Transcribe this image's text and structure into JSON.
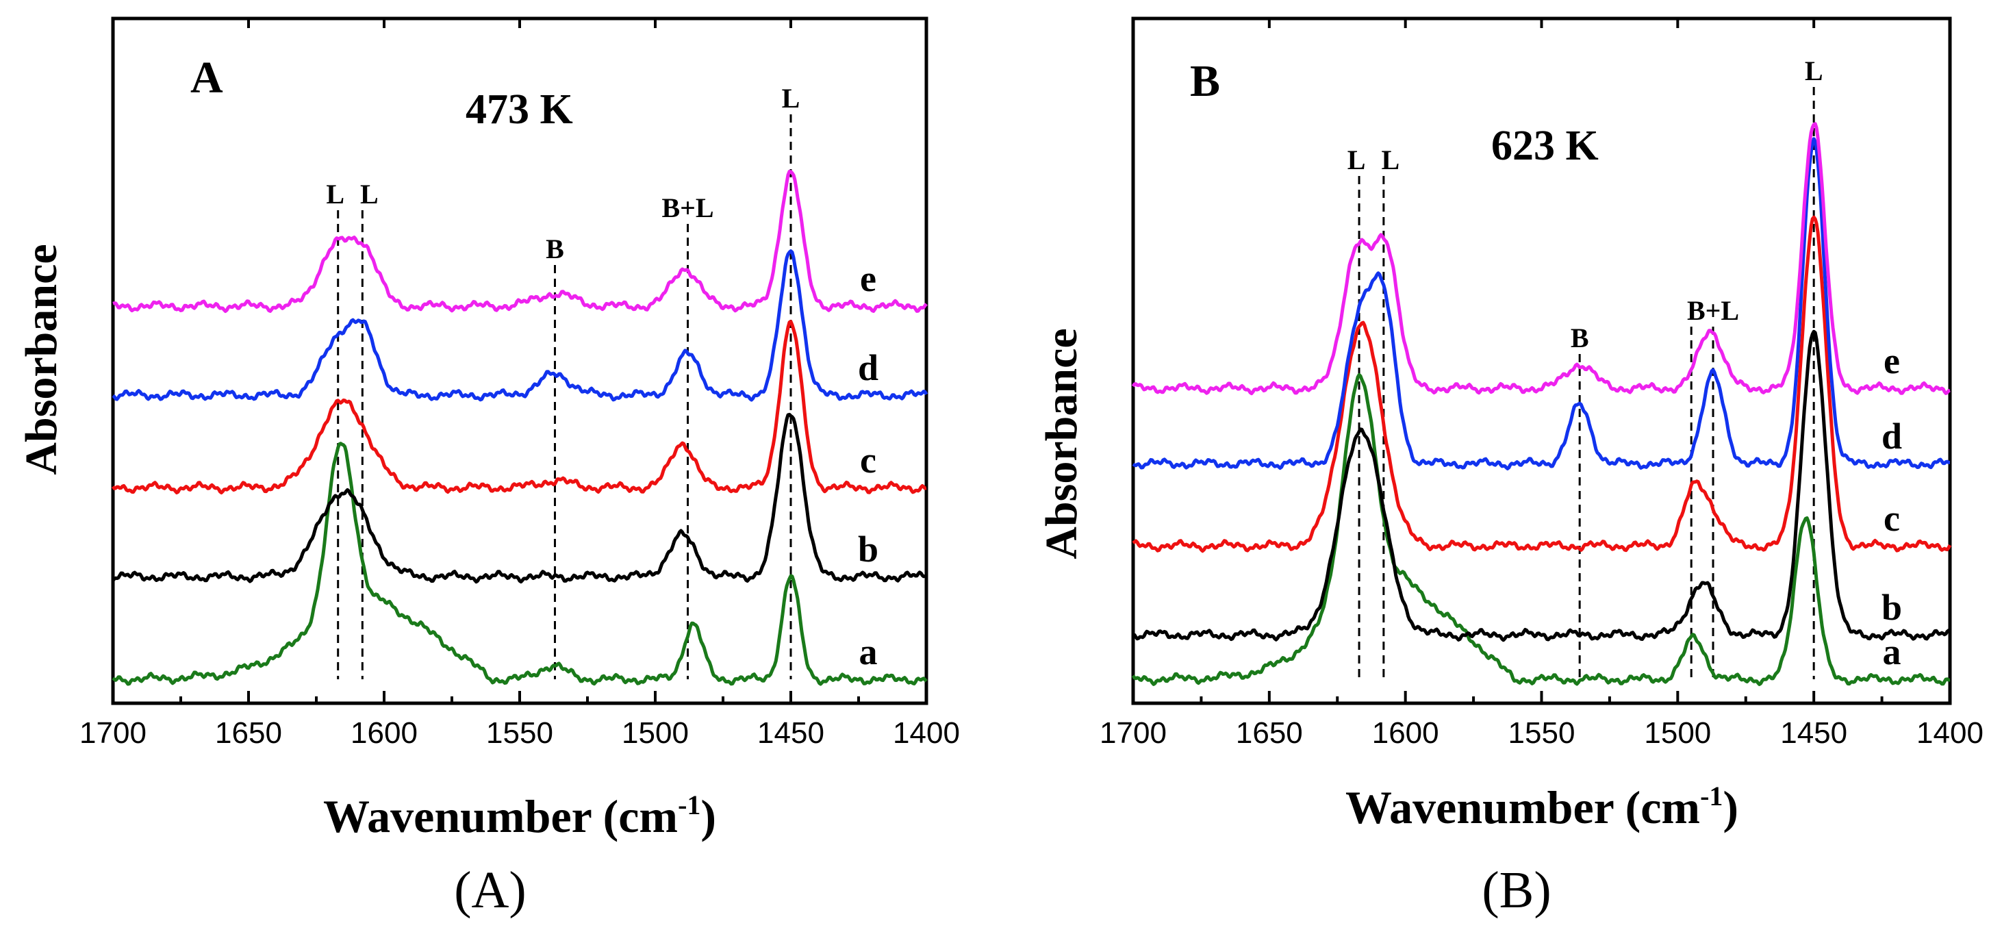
{
  "chart_data": [
    {
      "type": "line",
      "panel": "A",
      "temperature": "473 K",
      "xlabel": "Wavenumber (cm",
      "xlabel_sup": "-1",
      "xlabel_close": ")",
      "ylabel": "Absorbance",
      "caption": "(A)",
      "xlim": [
        1700,
        1400
      ],
      "ylim": [
        0,
        10
      ],
      "xticks": [
        1700,
        1650,
        1600,
        1550,
        1500,
        1450,
        1400
      ],
      "band_markers": [
        {
          "x": 1617,
          "label": "L",
          "top": 7.2
        },
        {
          "x": 1608,
          "label": "L",
          "top": 7.2
        },
        {
          "x": 1537,
          "label": "B",
          "top": 6.4
        },
        {
          "x": 1488,
          "label": "B+L",
          "top": 7.0
        },
        {
          "x": 1450,
          "label": "L",
          "top": 8.6
        }
      ],
      "band_label_order": [
        "L",
        "L",
        "B",
        "B+L",
        "L"
      ],
      "series": [
        {
          "name": "a",
          "color": "#1a7a1a",
          "baseline": 0.35,
          "ramp": {
            "center": 1630,
            "width": 45,
            "height": 1.2
          },
          "peaks": [
            {
              "x": 1616,
              "h": 2.5,
              "w": 5
            },
            {
              "x": 1538,
              "h": 0.2,
              "w": 5
            },
            {
              "x": 1486,
              "h": 0.8,
              "w": 3.5
            },
            {
              "x": 1450,
              "h": 1.5,
              "w": 3.2
            }
          ]
        },
        {
          "name": "b",
          "color": "#000000",
          "baseline": 1.85,
          "peaks": [
            {
              "x": 1615,
              "h": 1.25,
              "w": 9
            },
            {
              "x": 1490,
              "h": 0.6,
              "w": 5
            },
            {
              "x": 1450,
              "h": 2.4,
              "w": 4.5
            }
          ]
        },
        {
          "name": "c",
          "color": "#ee1111",
          "baseline": 3.15,
          "peaks": [
            {
              "x": 1615,
              "h": 1.25,
              "w": 9
            },
            {
              "x": 1537,
              "h": 0.1,
              "w": 6
            },
            {
              "x": 1490,
              "h": 0.65,
              "w": 4.5
            },
            {
              "x": 1450,
              "h": 2.4,
              "w": 4
            }
          ]
        },
        {
          "name": "d",
          "color": "#1133ee",
          "baseline": 4.5,
          "peaks": [
            {
              "x": 1617,
              "h": 0.8,
              "w": 6
            },
            {
              "x": 1607,
              "h": 0.8,
              "w": 5
            },
            {
              "x": 1537,
              "h": 0.3,
              "w": 6
            },
            {
              "x": 1488,
              "h": 0.6,
              "w": 4.5
            },
            {
              "x": 1450,
              "h": 2.1,
              "w": 4
            }
          ]
        },
        {
          "name": "e",
          "color": "#ee22ee",
          "baseline": 5.8,
          "peaks": [
            {
              "x": 1618,
              "h": 0.85,
              "w": 6
            },
            {
              "x": 1607,
              "h": 0.75,
              "w": 5
            },
            {
              "x": 1537,
              "h": 0.18,
              "w": 7
            },
            {
              "x": 1489,
              "h": 0.55,
              "w": 5
            },
            {
              "x": 1450,
              "h": 1.95,
              "w": 4
            }
          ]
        }
      ]
    },
    {
      "type": "line",
      "panel": "B",
      "temperature": "623 K",
      "xlabel": "Wavenumber (cm",
      "xlabel_sup": "-1",
      "xlabel_close": ")",
      "ylabel": "Absorbance",
      "caption": "(B)",
      "xlim": [
        1700,
        1400
      ],
      "ylim": [
        0,
        10
      ],
      "xticks": [
        1700,
        1650,
        1600,
        1550,
        1500,
        1450,
        1400
      ],
      "band_markers": [
        {
          "x": 1617,
          "label": "L",
          "top": 7.7
        },
        {
          "x": 1608,
          "label": "L",
          "top": 7.7
        },
        {
          "x": 1536,
          "label": "B",
          "top": 5.1
        },
        {
          "x": 1495,
          "label": "",
          "top": 5.5
        },
        {
          "x": 1487,
          "label": "B+L",
          "top": 5.5
        },
        {
          "x": 1450,
          "label": "L",
          "top": 9.0
        }
      ],
      "band_label_order": [
        "L",
        "L",
        "B",
        "B+L",
        "L"
      ],
      "series": [
        {
          "name": "a",
          "color": "#1a7a1a",
          "baseline": 0.35,
          "ramp": {
            "center": 1630,
            "width": 40,
            "height": 1.5
          },
          "peaks": [
            {
              "x": 1617,
              "h": 3.2,
              "w": 6
            },
            {
              "x": 1494,
              "h": 0.6,
              "w": 4
            },
            {
              "x": 1453,
              "h": 2.4,
              "w": 4
            }
          ]
        },
        {
          "name": "b",
          "color": "#000000",
          "baseline": 1.0,
          "peaks": [
            {
              "x": 1616,
              "h": 3.0,
              "w": 8
            },
            {
              "x": 1491,
              "h": 0.75,
              "w": 5
            },
            {
              "x": 1450,
              "h": 4.4,
              "w": 4.5
            }
          ]
        },
        {
          "name": "c",
          "color": "#ee1111",
          "baseline": 2.3,
          "peaks": [
            {
              "x": 1616,
              "h": 3.2,
              "w": 7.5
            },
            {
              "x": 1494,
              "h": 0.8,
              "w": 4
            },
            {
              "x": 1487,
              "h": 0.4,
              "w": 4
            },
            {
              "x": 1450,
              "h": 4.8,
              "w": 4.5
            }
          ]
        },
        {
          "name": "d",
          "color": "#1133ee",
          "baseline": 3.5,
          "peaks": [
            {
              "x": 1617,
              "h": 2.0,
              "w": 5
            },
            {
              "x": 1608,
              "h": 2.2,
              "w": 4.5
            },
            {
              "x": 1536,
              "h": 0.85,
              "w": 4
            },
            {
              "x": 1487,
              "h": 1.3,
              "w": 4
            },
            {
              "x": 1450,
              "h": 4.7,
              "w": 4
            }
          ]
        },
        {
          "name": "e",
          "color": "#ee22ee",
          "baseline": 4.6,
          "peaks": [
            {
              "x": 1618,
              "h": 2.0,
              "w": 5
            },
            {
              "x": 1607,
              "h": 2.0,
              "w": 4.5
            },
            {
              "x": 1536,
              "h": 0.35,
              "w": 5
            },
            {
              "x": 1488,
              "h": 0.85,
              "w": 4.5
            },
            {
              "x": 1450,
              "h": 3.9,
              "w": 4
            }
          ]
        }
      ]
    }
  ]
}
